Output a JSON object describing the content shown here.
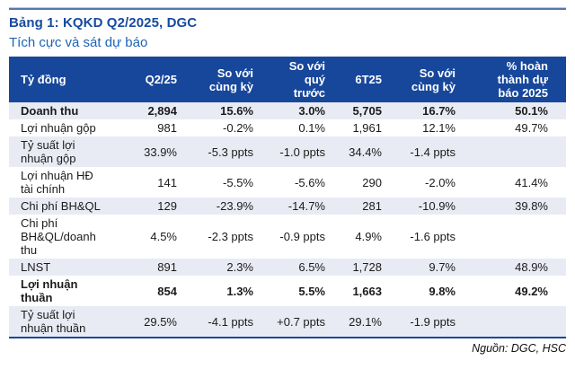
{
  "title": "Bảng 1: KQKD Q2/2025, DGC",
  "subtitle": "Tích cực và sát dự báo",
  "source": "Nguồn: DGC, HSC",
  "colors": {
    "header_navy": "#17479B",
    "title_blue": "#174A9F",
    "subtitle_blue": "#1D64B6",
    "row_stripe": "#E9EBF4",
    "top_rule_dark": "#5279AD",
    "top_rule_light": "#B9C9E0"
  },
  "table": {
    "unit_header": "Tỷ đồng",
    "headers": [
      "Tỷ đồng",
      "Q2/25",
      "So với\ncùng kỳ",
      "So với\nquý\ntrước",
      "6T25",
      "So với\ncùng kỳ",
      "% hoàn\nthành dự\nbáo 2025"
    ],
    "rows": [
      {
        "label": "Doanh thu",
        "bold": true,
        "cells": [
          "2,894",
          "15.6%",
          "3.0%",
          "5,705",
          "16.7%",
          "50.1%"
        ]
      },
      {
        "label": "Lợi nhuận gộp",
        "bold": false,
        "cells": [
          "981",
          "-0.2%",
          "0.1%",
          "1,961",
          "12.1%",
          "49.7%"
        ]
      },
      {
        "label": "Tỷ suất lợi\nnhuận gộp",
        "bold": false,
        "cells": [
          "33.9%",
          "-5.3 ppts",
          "-1.0 ppts",
          "34.4%",
          "-1.4 ppts",
          ""
        ]
      },
      {
        "label": "Lợi nhuận HĐ\ntài chính",
        "bold": false,
        "cells": [
          "141",
          "-5.5%",
          "-5.6%",
          "290",
          "-2.0%",
          "41.4%"
        ]
      },
      {
        "label": "Chi phí BH&QL",
        "bold": false,
        "cells": [
          "129",
          "-23.9%",
          "-14.7%",
          "281",
          "-10.9%",
          "39.8%"
        ]
      },
      {
        "label": "Chi phí\nBH&QL/doanh\nthu",
        "bold": false,
        "cells": [
          "4.5%",
          "-2.3 ppts",
          "-0.9 ppts",
          "4.9%",
          "-1.6 ppts",
          ""
        ]
      },
      {
        "label": "LNST",
        "bold": false,
        "cells": [
          "891",
          "2.3%",
          "6.5%",
          "1,728",
          "9.7%",
          "48.9%"
        ]
      },
      {
        "label": "Lợi nhuận\nthuần",
        "bold": true,
        "cells": [
          "854",
          "1.3%",
          "5.5%",
          "1,663",
          "9.8%",
          "49.2%"
        ]
      },
      {
        "label": "Tỷ suất lợi\nnhuận thuần",
        "bold": false,
        "cells": [
          "29.5%",
          "-4.1 ppts",
          "+0.7 ppts",
          "29.1%",
          "-1.9 ppts",
          ""
        ]
      }
    ]
  }
}
